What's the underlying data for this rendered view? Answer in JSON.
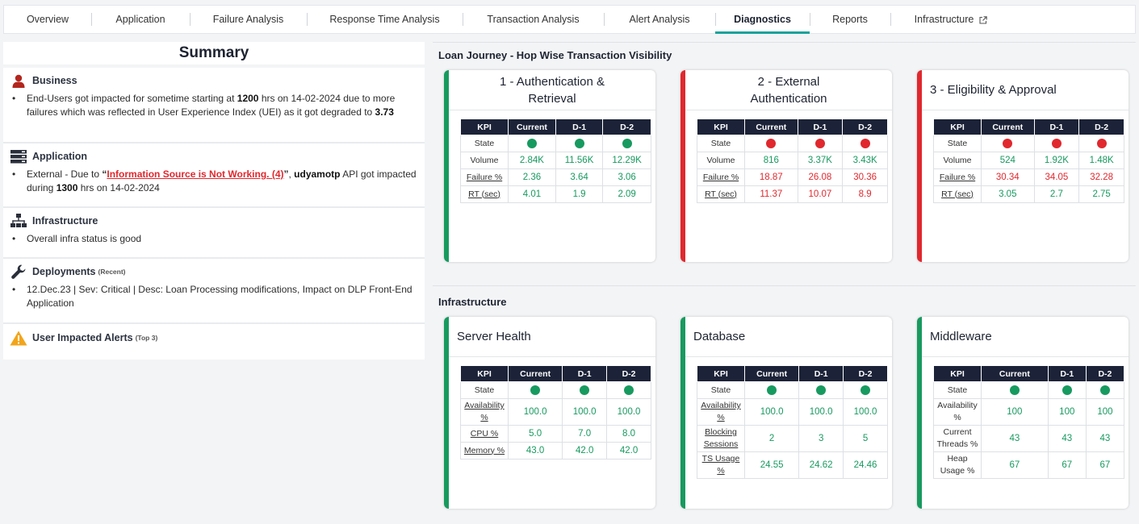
{
  "tabs": [
    {
      "label": "Overview",
      "width": 108
    },
    {
      "label": "Application",
      "width": 122
    },
    {
      "label": "Failure Analysis",
      "width": 145
    },
    {
      "label": "Response Time Analysis",
      "width": 193
    },
    {
      "label": "Transaction Analysis",
      "width": 175
    },
    {
      "label": "Alert Analysis",
      "width": 138
    },
    {
      "label": "Diagnostics",
      "width": 117,
      "active": true
    },
    {
      "label": "Reports",
      "width": 100
    },
    {
      "label": "Infrastructure",
      "width": 150,
      "external": true
    }
  ],
  "summary": {
    "title": "Summary",
    "business": {
      "heading": "Business",
      "text_a": "End-Users got impacted for sometime starting at ",
      "time": "1200",
      "text_b": " hrs on 14-02-2024 due to more failures which was reflected in User Experience Index (UEI) as it got degraded to ",
      "score": "3.73"
    },
    "application": {
      "heading": "Application",
      "text_a": "External - Due to ",
      "link": "Information Source is Not Working. (4)",
      "api": "udyamotp",
      "text_b": " API got impacted during ",
      "time": "1300",
      "text_c": " hrs on 14-02-2024"
    },
    "infrastructure": {
      "heading": "Infrastructure",
      "text": "Overall infra status is good"
    },
    "deployments": {
      "heading": "Deployments",
      "suffix": "(Recent)",
      "text": "12.Dec.23 | Sev: Critical | Desc: Loan Processing modifications, Impact on DLP Front-End Application"
    },
    "alerts": {
      "heading": "User Impacted Alerts",
      "suffix": "(Top 3)"
    }
  },
  "colors": {
    "green": "#179a5f",
    "red": "#e0282e",
    "header": "#1c2338",
    "accent": "#1aa39a"
  },
  "journey": {
    "title": "Loan Journey - Hop Wise Transaction Visibility",
    "headers": [
      "KPI",
      "Current",
      "D-1",
      "D-2"
    ],
    "cards": [
      {
        "title_l1": "1 - Authentication &",
        "title_l2": "Retrieval",
        "status": "green",
        "rows": [
          {
            "label": "State",
            "values": [
              "green",
              "green",
              "green"
            ],
            "type": "dot"
          },
          {
            "label": "Volume",
            "values": [
              "2.84K",
              "11.56K",
              "12.29K"
            ],
            "color": "green"
          },
          {
            "label": "Failure %",
            "values": [
              "2.36",
              "3.64",
              "3.06"
            ],
            "color": "green",
            "underline": true
          },
          {
            "label": "RT (sec)",
            "values": [
              "4.01",
              "1.9",
              "2.09"
            ],
            "color": "green",
            "underline": true
          }
        ]
      },
      {
        "title_l1": "2 - External",
        "title_l2": "Authentication",
        "status": "red",
        "rows": [
          {
            "label": "State",
            "values": [
              "red",
              "red",
              "red"
            ],
            "type": "dot"
          },
          {
            "label": "Volume",
            "values": [
              "816",
              "3.37K",
              "3.43K"
            ],
            "color": "green"
          },
          {
            "label": "Failure %",
            "values": [
              "18.87",
              "26.08",
              "30.36"
            ],
            "color": "red",
            "underline": true
          },
          {
            "label": "RT (sec)",
            "values": [
              "11.37",
              "10.07",
              "8.9"
            ],
            "color": "red",
            "underline": true
          }
        ]
      },
      {
        "title_l1": "3 - Eligibility & Approval",
        "title_l2": "",
        "status": "red",
        "rows": [
          {
            "label": "State",
            "values": [
              "red",
              "red",
              "red"
            ],
            "type": "dot"
          },
          {
            "label": "Volume",
            "values": [
              "524",
              "1.92K",
              "1.48K"
            ],
            "color": "green"
          },
          {
            "label": "Failure %",
            "values": [
              "30.34",
              "34.05",
              "32.28"
            ],
            "color": "red",
            "underline": true
          },
          {
            "label": "RT (sec)",
            "values": [
              "3.05",
              "2.7",
              "2.75"
            ],
            "color": "green",
            "underline": true
          }
        ]
      }
    ]
  },
  "infra": {
    "title": "Infrastructure",
    "headers": [
      "KPI",
      "Current",
      "D-1",
      "D-2"
    ],
    "cards": [
      {
        "title": "Server Health",
        "status": "green",
        "rows": [
          {
            "label": "State",
            "values": [
              "green",
              "green",
              "green"
            ],
            "type": "dot"
          },
          {
            "label": "Availability %",
            "values": [
              "100.0",
              "100.0",
              "100.0"
            ],
            "color": "green",
            "underline": true,
            "tall": true
          },
          {
            "label": "CPU %",
            "values": [
              "5.0",
              "7.0",
              "8.0"
            ],
            "color": "green",
            "underline": true
          },
          {
            "label": "Memory %",
            "values": [
              "43.0",
              "42.0",
              "42.0"
            ],
            "color": "green",
            "underline": true
          }
        ]
      },
      {
        "title": "Database",
        "status": "green",
        "rows": [
          {
            "label": "State",
            "values": [
              "green",
              "green",
              "green"
            ],
            "type": "dot"
          },
          {
            "label": "Availability %",
            "values": [
              "100.0",
              "100.0",
              "100.0"
            ],
            "color": "green",
            "underline": true,
            "tall": true
          },
          {
            "label": "Blocking Sessions",
            "values": [
              "2",
              "3",
              "5"
            ],
            "color": "green",
            "underline": true,
            "tall": true
          },
          {
            "label": "TS Usage %",
            "values": [
              "24.55",
              "24.62",
              "24.46"
            ],
            "color": "green",
            "underline": true,
            "tall": true
          }
        ]
      },
      {
        "title": "Middleware",
        "status": "green",
        "rows": [
          {
            "label": "State",
            "values": [
              "green",
              "green",
              "green"
            ],
            "type": "dot"
          },
          {
            "label": "Availability %",
            "values": [
              "100",
              "100",
              "100"
            ],
            "color": "green",
            "tall": true
          },
          {
            "label": "Current Threads %",
            "values": [
              "43",
              "43",
              "43"
            ],
            "color": "green",
            "tall": true
          },
          {
            "label": "Heap Usage %",
            "values": [
              "67",
              "67",
              "67"
            ],
            "color": "green",
            "tall": true
          }
        ]
      }
    ]
  }
}
